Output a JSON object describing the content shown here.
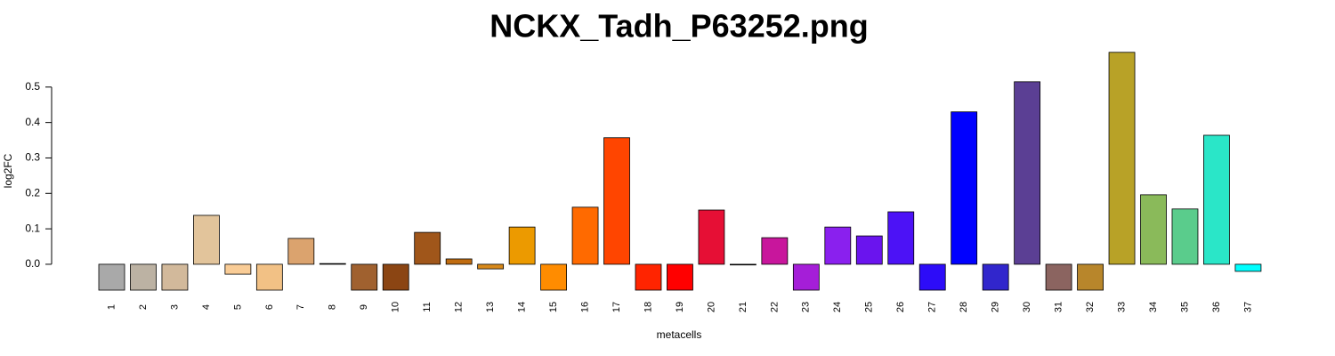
{
  "chart_data": {
    "type": "bar",
    "title": "NCKX_Tadh_P63252.png",
    "x_label": "metacells",
    "y_label": "log2FC",
    "categories": [
      "1",
      "2",
      "3",
      "4",
      "5",
      "6",
      "7",
      "8",
      "9",
      "10",
      "11",
      "12",
      "13",
      "14",
      "15",
      "16",
      "17",
      "18",
      "19",
      "20",
      "21",
      "22",
      "23",
      "24",
      "25",
      "26",
      "27",
      "28",
      "29",
      "30",
      "31",
      "32",
      "33",
      "34",
      "35",
      "36",
      "37"
    ],
    "values": [
      -0.073,
      -0.073,
      -0.073,
      0.138,
      -0.028,
      -0.073,
      0.073,
      0.002,
      -0.073,
      -0.073,
      0.09,
      0.015,
      -0.013,
      0.105,
      -0.073,
      0.161,
      0.357,
      -0.073,
      -0.073,
      0.153,
      -0.002,
      0.075,
      -0.073,
      0.105,
      0.08,
      0.148,
      -0.073,
      0.43,
      -0.073,
      0.515,
      -0.073,
      -0.073,
      0.598,
      0.196,
      0.156,
      0.364,
      -0.02
    ],
    "colors": [
      "#a9a9a9",
      "#bcb2a3",
      "#d2b99b",
      "#e2c49b",
      "#f9cc96",
      "#f2c185",
      "#dba36e",
      "#d2b48c",
      "#a0612f",
      "#8b4513",
      "#a0561a",
      "#c06c10",
      "#d8891a",
      "#ec9a00",
      "#ff8c00",
      "#ff6a00",
      "#ff4500",
      "#ff2400",
      "#ff0000",
      "#e60f35",
      "#c8155a",
      "#c8169c",
      "#a51ed8",
      "#8a20ee",
      "#6a14ee",
      "#4c12f6",
      "#2d0cf8",
      "#0000ff",
      "#3126cc",
      "#5b3f94",
      "#8b6460",
      "#b8862b",
      "#b8a227",
      "#8aba5a",
      "#5acc8c",
      "#2ae6c8",
      "#00ffff"
    ],
    "ylim": [
      -0.073,
      0.6
    ],
    "yticks": [
      {
        "value": 0,
        "label": "0.0"
      },
      0.1,
      0.2,
      0.3,
      0.4,
      0.5
    ]
  }
}
